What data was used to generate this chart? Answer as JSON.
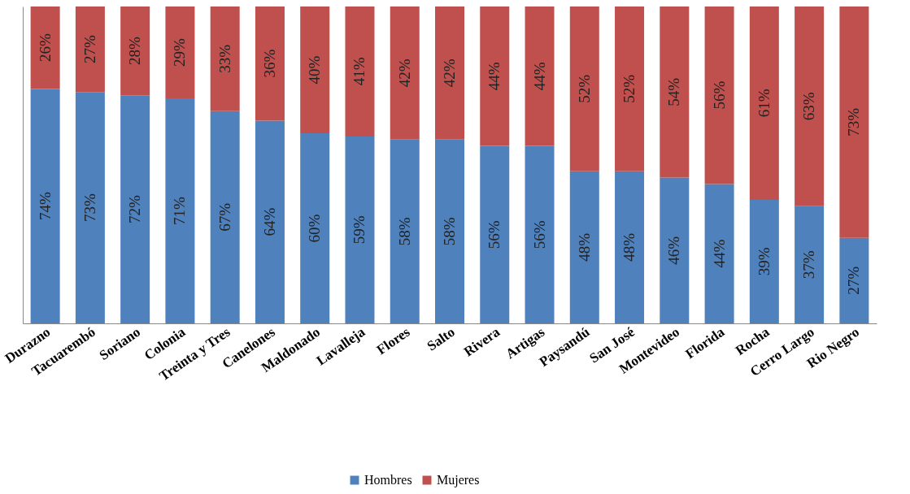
{
  "chart_data": {
    "type": "bar",
    "stacked": true,
    "relative": false,
    "legend": "bottom",
    "categories": [
      "Durazno",
      "Tacuarembó",
      "Soriano",
      "Colonia",
      "Treinta y Tres",
      "Canelones",
      "Maldonado",
      "Lavalleja",
      "Flores",
      "Salto",
      "Rivera",
      "Artigas",
      "Paysandú",
      "San José",
      "Montevideo",
      "Florida",
      "Rocha",
      "Cerro Largo",
      "Rio Negro"
    ],
    "series": [
      {
        "name": "Hombres",
        "color": "#4f81bd",
        "values": [
          74,
          73,
          72,
          71,
          67,
          64,
          60,
          59,
          58,
          58,
          56,
          56,
          48,
          48,
          46,
          44,
          39,
          37,
          27
        ],
        "value_labels": [
          "74%",
          "73%",
          "72%",
          "71%",
          "67%",
          "64%",
          "60%",
          "59%",
          "58%",
          "58%",
          "56%",
          "56%",
          "48%",
          "48%",
          "46%",
          "44%",
          "39%",
          "37%",
          "27%"
        ]
      },
      {
        "name": "Mujeres",
        "color": "#c0504d",
        "values": [
          26,
          27,
          28,
          29,
          33,
          36,
          40,
          41,
          42,
          42,
          44,
          44,
          52,
          52,
          54,
          56,
          61,
          63,
          73
        ],
        "value_labels": [
          "26%",
          "27%",
          "28%",
          "29%",
          "33%",
          "36%",
          "40%",
          "41%",
          "42%",
          "42%",
          "44%",
          "44%",
          "52%",
          "52%",
          "54%",
          "56%",
          "61%",
          "63%",
          "73%"
        ]
      }
    ]
  }
}
